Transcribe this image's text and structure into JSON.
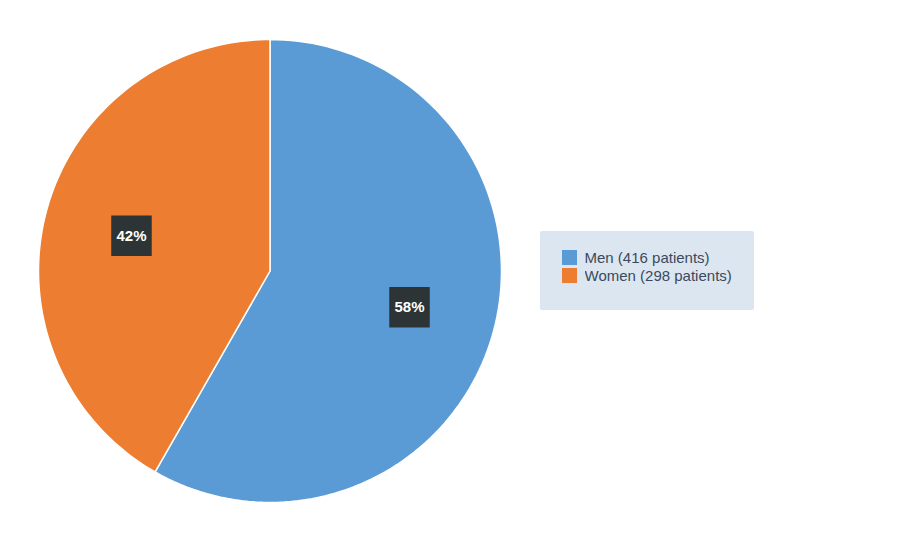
{
  "chart_data": {
    "type": "pie",
    "categories": [
      "Men (416 patients)",
      "Women (298 patients)"
    ],
    "values": [
      416,
      298
    ],
    "colors": [
      "#5b9bd5",
      "#ed7d31"
    ],
    "percentages": [
      58,
      42
    ],
    "percentage_labels": [
      "58%",
      "42%"
    ],
    "data_labels": true,
    "legend": "right"
  }
}
